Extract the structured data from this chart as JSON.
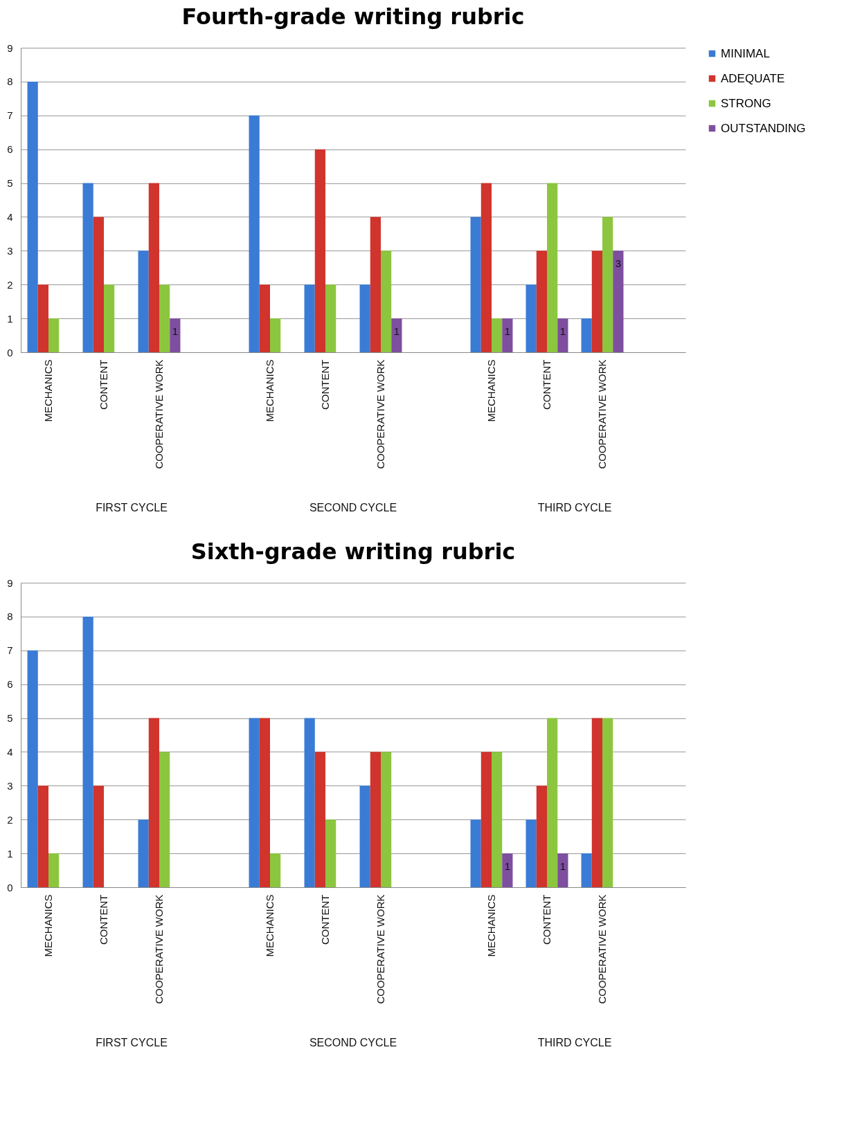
{
  "chart_data": [
    {
      "type": "bar",
      "title": "Fourth-grade writing rubric",
      "categories": [
        "MECHANICS",
        "CONTENT",
        "COOPERATIVE WORK",
        null,
        "MECHANICS",
        "CONTENT",
        "COOPERATIVE WORK",
        null,
        "MECHANICS",
        "CONTENT",
        "COOPERATIVE WORK",
        null
      ],
      "series": [
        {
          "name": "MINIMAL",
          "color": "#3a7bd5",
          "values": [
            8,
            5,
            3,
            null,
            7,
            2,
            2,
            null,
            4,
            2,
            1,
            null
          ]
        },
        {
          "name": "ADEQUATE",
          "color": "#d0342c",
          "values": [
            2,
            4,
            5,
            null,
            2,
            6,
            4,
            null,
            5,
            3,
            3,
            null
          ]
        },
        {
          "name": "STRONG",
          "color": "#8cc63f",
          "values": [
            1,
            2,
            2,
            null,
            1,
            2,
            3,
            null,
            1,
            5,
            4,
            null
          ]
        },
        {
          "name": "OUTSTANDING",
          "color": "#7d4f9e",
          "values": [
            0,
            0,
            1,
            null,
            0,
            0,
            1,
            null,
            1,
            1,
            3,
            null
          ],
          "value_labels": [
            null,
            null,
            "1",
            null,
            null,
            null,
            "1",
            null,
            "1",
            "1",
            "3",
            null
          ]
        }
      ],
      "annotations": [
        "FIRST CYCLE",
        "SECOND CYCLE",
        "THIRD CYCLE"
      ],
      "ylim": [
        0,
        9
      ],
      "yticks": [
        0,
        1,
        2,
        3,
        4,
        5,
        6,
        7,
        8,
        9
      ],
      "grid": "y",
      "legend": "right"
    },
    {
      "type": "bar",
      "title": "Sixth-grade writing rubric",
      "categories": [
        "MECHANICS",
        "CONTENT",
        "COOPERATIVE WORK",
        null,
        "MECHANICS",
        "CONTENT",
        "COOPERATIVE WORK",
        null,
        "MECHANICS",
        "CONTENT",
        "COOPERATIVE WORK",
        null
      ],
      "series": [
        {
          "name": "MINIMAL",
          "color": "#3a7bd5",
          "values": [
            7,
            8,
            2,
            null,
            5,
            5,
            3,
            null,
            2,
            2,
            1,
            null
          ]
        },
        {
          "name": "ADEQUATE",
          "color": "#d0342c",
          "values": [
            3,
            3,
            5,
            null,
            5,
            4,
            4,
            null,
            4,
            3,
            5,
            null
          ]
        },
        {
          "name": "STRONG",
          "color": "#8cc63f",
          "values": [
            1,
            0,
            4,
            null,
            1,
            2,
            4,
            null,
            4,
            5,
            5,
            null
          ]
        },
        {
          "name": "OUTSTANDING",
          "color": "#7d4f9e",
          "values": [
            0,
            0,
            0,
            null,
            0,
            0,
            0,
            null,
            1,
            1,
            0,
            null
          ],
          "value_labels": [
            null,
            null,
            null,
            null,
            null,
            null,
            null,
            null,
            "1",
            "1",
            null,
            null
          ]
        }
      ],
      "annotations": [
        "FIRST CYCLE",
        "SECOND CYCLE",
        "THIRD CYCLE"
      ],
      "ylim": [
        0,
        9
      ],
      "yticks": [
        0,
        1,
        2,
        3,
        4,
        5,
        6,
        7,
        8,
        9
      ],
      "grid": "y",
      "legend": "right"
    }
  ]
}
